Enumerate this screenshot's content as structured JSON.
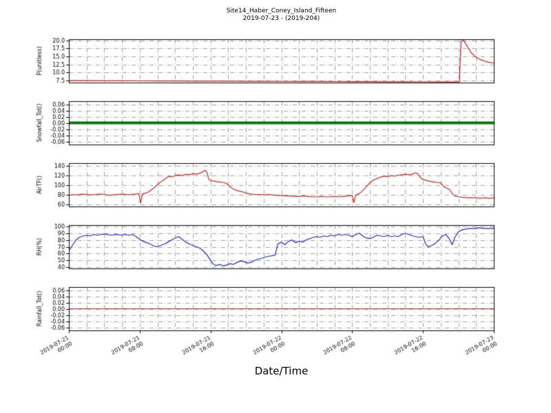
{
  "title": "Site14_Haber_Coney_Island_Fifteen",
  "subtitle": "2019-07-23 - (2019-204)",
  "xlabel": "Date/Time",
  "x_axis": {
    "range_hours": [
      0,
      48
    ],
    "tick_hours": [
      0,
      8,
      16,
      24,
      32,
      40,
      48
    ],
    "tick_labels": [
      "2019-07-21\n00:00",
      "2019-07-21\n08:00",
      "2019-07-21\n16:00",
      "2019-07-22\n00:00",
      "2019-07-22\n08:00",
      "2019-07-22\n16:00",
      "2019-07-23\n00:00"
    ],
    "minor_grid_hours": 2
  },
  "chart_data": [
    {
      "type": "line",
      "ylabel": "P(unitless)",
      "color": "#cc1111",
      "line_width": 1.2,
      "ylim": [
        6.8,
        20.4
      ],
      "yticks": [
        7.5,
        10.0,
        12.5,
        15.0,
        17.5,
        20.0
      ],
      "ytick_decimals": 1,
      "grid": true,
      "points": [
        [
          0,
          7.42
        ],
        [
          2,
          7.4
        ],
        [
          4,
          7.38
        ],
        [
          6,
          7.36
        ],
        [
          8,
          7.34
        ],
        [
          10,
          7.32
        ],
        [
          12,
          7.3
        ],
        [
          14,
          7.28
        ],
        [
          16,
          7.26
        ],
        [
          18,
          7.24
        ],
        [
          20,
          7.22
        ],
        [
          22,
          7.2
        ],
        [
          24,
          7.18
        ],
        [
          26,
          7.16
        ],
        [
          28,
          7.14
        ],
        [
          30,
          7.12
        ],
        [
          32,
          7.1
        ],
        [
          34,
          7.08
        ],
        [
          36,
          7.06
        ],
        [
          38,
          7.04
        ],
        [
          40,
          7.02
        ],
        [
          42,
          7.0
        ],
        [
          43.5,
          6.98
        ],
        [
          44.1,
          6.98
        ],
        [
          44.3,
          19.8
        ],
        [
          44.6,
          20.0
        ],
        [
          45.0,
          18.2
        ],
        [
          45.4,
          16.3
        ],
        [
          45.8,
          15.2
        ],
        [
          46.2,
          14.4
        ],
        [
          46.6,
          13.9
        ],
        [
          47.0,
          13.5
        ],
        [
          47.4,
          13.2
        ],
        [
          47.8,
          13.0
        ],
        [
          48,
          12.9
        ]
      ]
    },
    {
      "type": "line",
      "ylabel": "Snowfall_Tot()",
      "color": "#007700",
      "line_width": 4,
      "ylim": [
        -0.07,
        0.07
      ],
      "yticks": [
        0.06,
        0.04,
        0.02,
        0.0,
        -0.02,
        -0.04,
        -0.06
      ],
      "ytick_decimals": 2,
      "grid": true,
      "points": [
        [
          0,
          0
        ],
        [
          48,
          0
        ]
      ]
    },
    {
      "type": "line",
      "ylabel": "AirTF()",
      "color": "#cc2222",
      "line_width": 1.2,
      "ylim": [
        55,
        145
      ],
      "yticks": [
        60,
        80,
        100,
        120,
        140
      ],
      "ytick_decimals": 0,
      "grid": true,
      "points": [
        [
          0,
          78
        ],
        [
          0.5,
          80
        ],
        [
          1,
          79
        ],
        [
          1.5,
          81
        ],
        [
          2,
          80
        ],
        [
          2.5,
          79
        ],
        [
          3,
          80
        ],
        [
          3.5,
          81
        ],
        [
          4,
          80
        ],
        [
          4.5,
          78
        ],
        [
          5,
          79
        ],
        [
          5.5,
          80
        ],
        [
          6,
          81
        ],
        [
          6.5,
          80
        ],
        [
          7,
          80
        ],
        [
          7.5,
          81
        ],
        [
          7.9,
          82
        ],
        [
          8.1,
          62
        ],
        [
          8.3,
          81
        ],
        [
          8.7,
          83
        ],
        [
          9,
          85
        ],
        [
          9.5,
          92
        ],
        [
          10,
          100
        ],
        [
          10.5,
          108
        ],
        [
          11,
          114
        ],
        [
          11.3,
          118
        ],
        [
          11.6,
          116
        ],
        [
          12,
          119
        ],
        [
          12.4,
          121
        ],
        [
          12.8,
          119
        ],
        [
          13.2,
          122
        ],
        [
          13.6,
          121
        ],
        [
          14,
          123
        ],
        [
          14.4,
          122
        ],
        [
          14.8,
          124
        ],
        [
          15.1,
          127
        ],
        [
          15.4,
          130
        ],
        [
          15.6,
          126
        ],
        [
          15.8,
          112
        ],
        [
          16,
          109
        ],
        [
          16.3,
          108
        ],
        [
          16.6,
          107
        ],
        [
          17,
          106
        ],
        [
          17.4,
          105
        ],
        [
          17.8,
          103
        ],
        [
          18.2,
          96
        ],
        [
          18.6,
          91
        ],
        [
          19,
          88
        ],
        [
          19.5,
          86
        ],
        [
          20,
          83
        ],
        [
          20.5,
          81
        ],
        [
          21,
          80
        ],
        [
          21.5,
          80
        ],
        [
          22,
          79
        ],
        [
          22.5,
          80
        ],
        [
          23,
          79
        ],
        [
          23.5,
          78
        ],
        [
          24,
          78
        ],
        [
          24.5,
          77
        ],
        [
          25,
          77
        ],
        [
          25.5,
          76
        ],
        [
          26,
          76
        ],
        [
          26.5,
          77
        ],
        [
          27,
          76
        ],
        [
          27.5,
          75
        ],
        [
          28,
          75
        ],
        [
          28.5,
          76
        ],
        [
          29,
          75
        ],
        [
          29.5,
          75
        ],
        [
          30,
          76
        ],
        [
          30.5,
          75
        ],
        [
          31,
          76
        ],
        [
          31.5,
          77
        ],
        [
          32,
          78
        ],
        [
          32.2,
          63
        ],
        [
          32.4,
          79
        ],
        [
          32.8,
          82
        ],
        [
          33.2,
          88
        ],
        [
          33.6,
          96
        ],
        [
          34,
          104
        ],
        [
          34.4,
          110
        ],
        [
          34.8,
          113
        ],
        [
          35.2,
          116
        ],
        [
          35.6,
          118
        ],
        [
          36,
          117
        ],
        [
          36.4,
          119
        ],
        [
          36.8,
          118
        ],
        [
          37.2,
          120
        ],
        [
          37.6,
          121
        ],
        [
          38,
          122
        ],
        [
          38.4,
          121
        ],
        [
          38.8,
          122
        ],
        [
          39.1,
          125
        ],
        [
          39.4,
          123
        ],
        [
          39.7,
          115
        ],
        [
          40,
          111
        ],
        [
          40.4,
          109
        ],
        [
          40.8,
          107
        ],
        [
          41.2,
          106
        ],
        [
          41.6,
          105
        ],
        [
          42,
          104
        ],
        [
          42.3,
          97
        ],
        [
          42.6,
          94
        ],
        [
          43,
          90
        ],
        [
          43.3,
          82
        ],
        [
          43.6,
          77
        ],
        [
          44,
          75
        ],
        [
          44.5,
          74
        ],
        [
          45,
          73
        ],
        [
          45.5,
          73
        ],
        [
          46,
          73
        ],
        [
          46.5,
          72
        ],
        [
          47,
          73
        ],
        [
          47.5,
          72
        ],
        [
          48,
          73
        ]
      ]
    },
    {
      "type": "line",
      "ylabel": "RH(%)",
      "color": "#2222cc",
      "line_width": 1.2,
      "ylim": [
        38,
        102
      ],
      "yticks": [
        40,
        50,
        60,
        70,
        80,
        90,
        100
      ],
      "ytick_decimals": 0,
      "grid": true,
      "points": [
        [
          0,
          64
        ],
        [
          0.4,
          72
        ],
        [
          0.8,
          80
        ],
        [
          1.2,
          84
        ],
        [
          1.6,
          86
        ],
        [
          2,
          87
        ],
        [
          2.4,
          86
        ],
        [
          2.8,
          88
        ],
        [
          3.2,
          87
        ],
        [
          3.6,
          88
        ],
        [
          4,
          89
        ],
        [
          4.4,
          88
        ],
        [
          4.8,
          87
        ],
        [
          5.2,
          88
        ],
        [
          5.6,
          88
        ],
        [
          6,
          87
        ],
        [
          6.4,
          88
        ],
        [
          6.8,
          87
        ],
        [
          7.2,
          88
        ],
        [
          7.6,
          85
        ],
        [
          8,
          81
        ],
        [
          8.4,
          78
        ],
        [
          8.8,
          76
        ],
        [
          9.2,
          74
        ],
        [
          9.6,
          71
        ],
        [
          10,
          70
        ],
        [
          10.4,
          72
        ],
        [
          10.8,
          74
        ],
        [
          11.2,
          77
        ],
        [
          11.6,
          80
        ],
        [
          12,
          83
        ],
        [
          12.4,
          85
        ],
        [
          12.8,
          81
        ],
        [
          13.2,
          77
        ],
        [
          13.6,
          74
        ],
        [
          14,
          72
        ],
        [
          14.4,
          70
        ],
        [
          14.8,
          68
        ],
        [
          15.2,
          64
        ],
        [
          15.6,
          58
        ],
        [
          16,
          50
        ],
        [
          16.3,
          45
        ],
        [
          16.6,
          42
        ],
        [
          17,
          44
        ],
        [
          17.4,
          42
        ],
        [
          17.8,
          43
        ],
        [
          18.2,
          45
        ],
        [
          18.6,
          44
        ],
        [
          19,
          47
        ],
        [
          19.4,
          49
        ],
        [
          19.8,
          48
        ],
        [
          20.2,
          46
        ],
        [
          20.6,
          47
        ],
        [
          21,
          50
        ],
        [
          21.4,
          52
        ],
        [
          21.8,
          53
        ],
        [
          22.2,
          55
        ],
        [
          22.6,
          56
        ],
        [
          23,
          57
        ],
        [
          23.3,
          58
        ],
        [
          23.6,
          74
        ],
        [
          24,
          77
        ],
        [
          24.4,
          73
        ],
        [
          24.8,
          78
        ],
        [
          25.2,
          80
        ],
        [
          25.6,
          76
        ],
        [
          26,
          78
        ],
        [
          26.4,
          77
        ],
        [
          26.8,
          80
        ],
        [
          27.2,
          82
        ],
        [
          27.6,
          84
        ],
        [
          28,
          85
        ],
        [
          28.4,
          84
        ],
        [
          28.8,
          86
        ],
        [
          29.2,
          85
        ],
        [
          29.6,
          87
        ],
        [
          30,
          86
        ],
        [
          30.4,
          88
        ],
        [
          30.8,
          87
        ],
        [
          31.2,
          88
        ],
        [
          31.6,
          87
        ],
        [
          32,
          85
        ],
        [
          32.4,
          88
        ],
        [
          32.8,
          90
        ],
        [
          33.2,
          86
        ],
        [
          33.6,
          83
        ],
        [
          34,
          82
        ],
        [
          34.4,
          84
        ],
        [
          34.8,
          87
        ],
        [
          35.2,
          86
        ],
        [
          35.6,
          85
        ],
        [
          36,
          87
        ],
        [
          36.4,
          85
        ],
        [
          36.8,
          86
        ],
        [
          37.2,
          85
        ],
        [
          37.6,
          88
        ],
        [
          38,
          90
        ],
        [
          38.4,
          88
        ],
        [
          38.8,
          86
        ],
        [
          39.2,
          85
        ],
        [
          39.6,
          84
        ],
        [
          40,
          85
        ],
        [
          40.3,
          74
        ],
        [
          40.6,
          70
        ],
        [
          41,
          72
        ],
        [
          41.4,
          75
        ],
        [
          41.8,
          80
        ],
        [
          42.2,
          86
        ],
        [
          42.6,
          88
        ],
        [
          43,
          81
        ],
        [
          43.3,
          73
        ],
        [
          43.6,
          84
        ],
        [
          44,
          92
        ],
        [
          44.4,
          95
        ],
        [
          44.8,
          96
        ],
        [
          45.2,
          97
        ],
        [
          45.6,
          97
        ],
        [
          46,
          97
        ],
        [
          46.4,
          98
        ],
        [
          46.8,
          97
        ],
        [
          47.2,
          97
        ],
        [
          47.6,
          97
        ],
        [
          48,
          97
        ]
      ]
    },
    {
      "type": "line",
      "ylabel": "Rainfall_Tot()",
      "color": "#dd2222",
      "line_width": 1.2,
      "ylim": [
        -0.07,
        0.07
      ],
      "yticks": [
        0.06,
        0.04,
        0.02,
        0.0,
        -0.02,
        -0.04,
        -0.06
      ],
      "ytick_decimals": 2,
      "grid": true,
      "points": [
        [
          0,
          0
        ],
        [
          48,
          0
        ]
      ]
    }
  ]
}
